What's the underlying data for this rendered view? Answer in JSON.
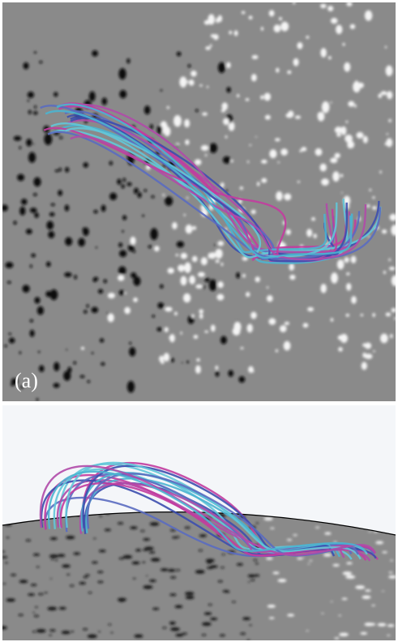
{
  "panels": [
    {
      "label": "(a)"
    }
  ]
}
